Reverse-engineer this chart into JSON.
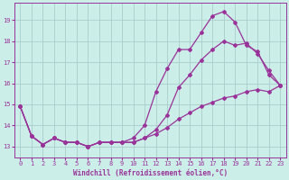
{
  "xlabel": "Windchill (Refroidissement éolien,°C)",
  "background_color": "#cceee8",
  "grid_color": "#aacccc",
  "line_color": "#993399",
  "spine_color": "#993399",
  "xlim": [
    -0.5,
    23.5
  ],
  "ylim": [
    12.5,
    19.8
  ],
  "yticks": [
    13,
    14,
    15,
    16,
    17,
    18,
    19
  ],
  "xticks": [
    0,
    1,
    2,
    3,
    4,
    5,
    6,
    7,
    8,
    9,
    10,
    11,
    12,
    13,
    14,
    15,
    16,
    17,
    18,
    19,
    20,
    21,
    22,
    23
  ],
  "line1_x": [
    0,
    1,
    2,
    3,
    4,
    5,
    6,
    7,
    8,
    9,
    10,
    11,
    12,
    13,
    14,
    15,
    16,
    17,
    18,
    19,
    20,
    21,
    22,
    23
  ],
  "line1_y": [
    14.9,
    13.5,
    13.1,
    13.4,
    13.2,
    13.2,
    13.0,
    13.2,
    13.2,
    13.2,
    13.4,
    14.0,
    15.6,
    16.7,
    17.6,
    17.6,
    18.4,
    19.2,
    19.4,
    18.9,
    17.8,
    17.5,
    16.4,
    15.9
  ],
  "line2_x": [
    0,
    1,
    2,
    3,
    4,
    5,
    6,
    7,
    8,
    9,
    10,
    11,
    12,
    13,
    14,
    15,
    16,
    17,
    18,
    19,
    20,
    21,
    22,
    23
  ],
  "line2_y": [
    14.9,
    13.5,
    13.1,
    13.4,
    13.2,
    13.2,
    13.0,
    13.2,
    13.2,
    13.2,
    13.2,
    13.4,
    13.8,
    14.5,
    15.8,
    16.4,
    17.1,
    17.6,
    18.0,
    17.8,
    17.9,
    17.4,
    16.6,
    15.9
  ],
  "line3_x": [
    0,
    1,
    2,
    3,
    4,
    5,
    6,
    7,
    8,
    9,
    10,
    11,
    12,
    13,
    14,
    15,
    16,
    17,
    18,
    19,
    20,
    21,
    22,
    23
  ],
  "line3_y": [
    14.9,
    13.5,
    13.1,
    13.4,
    13.2,
    13.2,
    13.0,
    13.2,
    13.2,
    13.2,
    13.2,
    13.4,
    13.6,
    13.9,
    14.3,
    14.6,
    14.9,
    15.1,
    15.3,
    15.4,
    15.6,
    15.7,
    15.6,
    15.9
  ],
  "marker": "D",
  "markersize": 2.0,
  "linewidth": 0.9,
  "xlabel_fontsize": 5.5,
  "tick_fontsize": 5.0
}
